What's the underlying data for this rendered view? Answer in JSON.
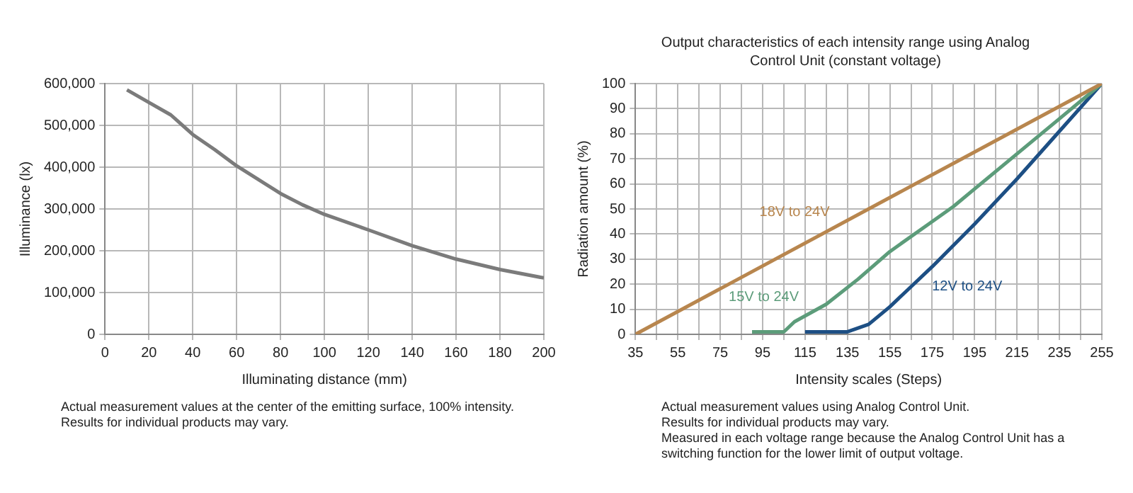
{
  "chart_data": [
    {
      "type": "line",
      "xlabel": "Illuminating distance (mm)",
      "ylabel": "Illuminance (lx)",
      "grid": true,
      "legend": false,
      "series": [
        {
          "color": "#7b7b7b",
          "x": [
            10,
            20,
            30,
            40,
            50,
            60,
            70,
            80,
            90,
            100,
            120,
            140,
            160,
            180,
            200
          ],
          "values": [
            585000,
            555000,
            525000,
            478000,
            442000,
            403000,
            370000,
            337000,
            310000,
            287000,
            250000,
            212000,
            180000,
            155000,
            135000
          ]
        }
      ],
      "xlim": [
        0,
        200
      ],
      "xticks": [
        0,
        20,
        40,
        60,
        80,
        100,
        120,
        140,
        160,
        180,
        200
      ],
      "ylim": [
        0,
        600000
      ],
      "yticks": [
        0,
        {
          "value": 100000,
          "label": "100,000"
        },
        {
          "value": 200000,
          "label": "200,000"
        },
        {
          "value": 300000,
          "label": "300,000"
        },
        {
          "value": 400000,
          "label": "400,000"
        },
        {
          "value": 500000,
          "label": "500,000"
        },
        {
          "value": 600000,
          "label": "600,000"
        }
      ],
      "annotations": [
        "Actual measurement values at the center of the emitting surface, 100% intensity.",
        "Results for individual products may vary."
      ]
    },
    {
      "type": "line",
      "title": "Output characteristics of each intensity range using Analog Control Unit (constant voltage)",
      "xlabel": "Intensity scales (Steps)",
      "ylabel": "Radiation amount (%)",
      "grid": true,
      "legend": false,
      "series": [
        {
          "name": "18V to 24V",
          "color": "#b8864e",
          "x": [
            35,
            255
          ],
          "values": [
            0,
            100
          ]
        },
        {
          "name": "15V to 24V",
          "color": "#5c9c7a",
          "x": [
            90,
            105,
            110,
            125,
            140,
            155,
            175,
            185,
            195,
            215,
            235,
            255
          ],
          "values": [
            1,
            1,
            5,
            12,
            22,
            33,
            45,
            51,
            58,
            72,
            86,
            100
          ]
        },
        {
          "name": "12V to 24V",
          "color": "#1d4f84",
          "x": [
            115,
            135,
            145,
            155,
            165,
            175,
            195,
            215,
            235,
            255
          ],
          "values": [
            1,
            1,
            4,
            11,
            19,
            27,
            44,
            62,
            81,
            100
          ]
        }
      ],
      "xlim": [
        35,
        255
      ],
      "xticks": [
        35,
        {
          "value": 45,
          "label": null
        },
        55,
        {
          "value": 65,
          "label": null
        },
        75,
        {
          "value": 85,
          "label": null
        },
        95,
        {
          "value": 105,
          "label": null
        },
        115,
        {
          "value": 125,
          "label": null
        },
        135,
        {
          "value": 145,
          "label": null
        },
        155,
        {
          "value": 165,
          "label": null
        },
        175,
        {
          "value": 185,
          "label": null
        },
        195,
        {
          "value": 205,
          "label": null
        },
        215,
        {
          "value": 225,
          "label": null
        },
        235,
        {
          "value": 245,
          "label": null
        },
        255
      ],
      "ylim": [
        0,
        100
      ],
      "yticks": [
        0,
        10,
        20,
        30,
        40,
        50,
        60,
        70,
        80,
        90,
        100
      ],
      "annotations": [
        "Actual measurement values using Analog Control Unit.",
        "Results for individual products may vary.",
        "Measured in each voltage range because the Analog Control Unit has a switching function for the lower limit of output voltage."
      ]
    }
  ]
}
